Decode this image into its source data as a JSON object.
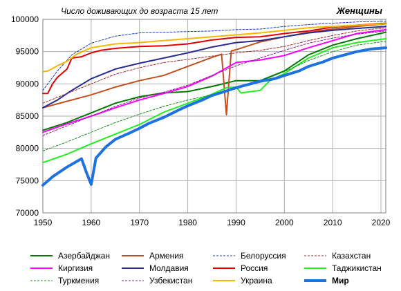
{
  "chart_data": {
    "type": "line",
    "title": "Число доживающих до возраста 15 лет",
    "subtitle": "Женщины",
    "xlabel": "",
    "ylabel": "",
    "xlim": [
      1950,
      2021
    ],
    "ylim": [
      70000,
      100000
    ],
    "x_ticks": [
      1950,
      1960,
      1970,
      1980,
      1990,
      2000,
      2010,
      2020
    ],
    "y_ticks": [
      70000,
      75000,
      80000,
      85000,
      90000,
      95000,
      100000
    ],
    "y_tick_labels": [
      "70000",
      "75000",
      "80000",
      "85000",
      "90000",
      "95000",
      "100000"
    ],
    "grid": true,
    "legend_position": "bottom",
    "series": [
      {
        "name": "Азербайджан",
        "color": "#007a00",
        "dash": "solid",
        "width": 2,
        "points": [
          [
            1950,
            82800
          ],
          [
            1955,
            84000
          ],
          [
            1960,
            85500
          ],
          [
            1965,
            87000
          ],
          [
            1970,
            88000
          ],
          [
            1975,
            88600
          ],
          [
            1980,
            88800
          ],
          [
            1985,
            89600
          ],
          [
            1990,
            90500
          ],
          [
            1995,
            90500
          ],
          [
            2000,
            92000
          ],
          [
            2005,
            94500
          ],
          [
            2010,
            96000
          ],
          [
            2015,
            97000
          ],
          [
            2021,
            98000
          ]
        ]
      },
      {
        "name": "Армения",
        "color": "#c0501e",
        "dash": "solid",
        "width": 2,
        "points": [
          [
            1950,
            86300
          ],
          [
            1955,
            87300
          ],
          [
            1960,
            88300
          ],
          [
            1965,
            89500
          ],
          [
            1970,
            90500
          ],
          [
            1975,
            91300
          ],
          [
            1980,
            92700
          ],
          [
            1985,
            94100
          ],
          [
            1987,
            94600
          ],
          [
            1988,
            85200
          ],
          [
            1989,
            95100
          ],
          [
            1990,
            95300
          ],
          [
            1995,
            96500
          ],
          [
            2000,
            97300
          ],
          [
            2005,
            98000
          ],
          [
            2010,
            98500
          ],
          [
            2015,
            98900
          ],
          [
            2021,
            99300
          ]
        ]
      },
      {
        "name": "Белоруссия",
        "color": "#1f3fbf",
        "dash": "dashed",
        "width": 1,
        "points": [
          [
            1950,
            89000
          ],
          [
            1953,
            92000
          ],
          [
            1956,
            94500
          ],
          [
            1960,
            96300
          ],
          [
            1965,
            97400
          ],
          [
            1970,
            97900
          ],
          [
            1975,
            98000
          ],
          [
            1980,
            98100
          ],
          [
            1985,
            98200
          ],
          [
            1990,
            98400
          ],
          [
            1995,
            98500
          ],
          [
            2000,
            98900
          ],
          [
            2005,
            99200
          ],
          [
            2010,
            99400
          ],
          [
            2015,
            99600
          ],
          [
            2021,
            99700
          ]
        ]
      },
      {
        "name": "Казахстан",
        "color": "#a52a2a",
        "dash": "dashed",
        "width": 1,
        "points": [
          [
            1950,
            87000
          ],
          [
            1955,
            88500
          ],
          [
            1960,
            90000
          ],
          [
            1965,
            91500
          ],
          [
            1970,
            92500
          ],
          [
            1975,
            93300
          ],
          [
            1980,
            93800
          ],
          [
            1985,
            94300
          ],
          [
            1990,
            94800
          ],
          [
            1995,
            95200
          ],
          [
            2000,
            95800
          ],
          [
            2005,
            96700
          ],
          [
            2010,
            97500
          ],
          [
            2015,
            98200
          ],
          [
            2021,
            98700
          ]
        ]
      },
      {
        "name": "Киргизия",
        "color": "#ff00ff",
        "dash": "solid",
        "width": 2,
        "points": [
          [
            1950,
            82500
          ],
          [
            1955,
            83800
          ],
          [
            1960,
            85000
          ],
          [
            1965,
            86300
          ],
          [
            1970,
            87500
          ],
          [
            1975,
            88500
          ],
          [
            1980,
            89600
          ],
          [
            1985,
            91200
          ],
          [
            1990,
            93300
          ],
          [
            1995,
            93700
          ],
          [
            2000,
            94400
          ],
          [
            2005,
            95600
          ],
          [
            2010,
            96700
          ],
          [
            2015,
            97800
          ],
          [
            2021,
            98400
          ]
        ]
      },
      {
        "name": "Молдавия",
        "color": "#2b2b8f",
        "dash": "solid",
        "width": 2,
        "points": [
          [
            1950,
            86300
          ],
          [
            1953,
            87500
          ],
          [
            1956,
            89000
          ],
          [
            1960,
            90800
          ],
          [
            1965,
            92300
          ],
          [
            1970,
            93200
          ],
          [
            1975,
            94000
          ],
          [
            1980,
            94800
          ],
          [
            1985,
            95700
          ],
          [
            1990,
            96400
          ],
          [
            1995,
            96700
          ],
          [
            2000,
            97300
          ],
          [
            2005,
            97900
          ],
          [
            2010,
            98300
          ],
          [
            2015,
            98600
          ],
          [
            2021,
            98900
          ]
        ]
      },
      {
        "name": "Россия",
        "color": "#e00000",
        "dash": "solid",
        "width": 2,
        "points": [
          [
            1950,
            88500
          ],
          [
            1951,
            88500
          ],
          [
            1952,
            90000
          ],
          [
            1953,
            91000
          ],
          [
            1955,
            92300
          ],
          [
            1956,
            94000
          ],
          [
            1958,
            94200
          ],
          [
            1960,
            94800
          ],
          [
            1962,
            95200
          ],
          [
            1965,
            95500
          ],
          [
            1970,
            95800
          ],
          [
            1975,
            95900
          ],
          [
            1980,
            96200
          ],
          [
            1985,
            96800
          ],
          [
            1990,
            97200
          ],
          [
            1995,
            97300
          ],
          [
            2000,
            97800
          ],
          [
            2005,
            98200
          ],
          [
            2010,
            98800
          ],
          [
            2015,
            99100
          ],
          [
            2021,
            99400
          ]
        ]
      },
      {
        "name": "Таджикистан",
        "color": "#22ee22",
        "dash": "solid",
        "width": 2,
        "points": [
          [
            1950,
            77800
          ],
          [
            1955,
            79100
          ],
          [
            1960,
            80700
          ],
          [
            1965,
            82200
          ],
          [
            1970,
            83700
          ],
          [
            1975,
            85600
          ],
          [
            1980,
            87000
          ],
          [
            1985,
            88400
          ],
          [
            1988,
            89400
          ],
          [
            1990,
            89500
          ],
          [
            1991,
            88600
          ],
          [
            1995,
            89000
          ],
          [
            1997,
            90500
          ],
          [
            2000,
            91600
          ],
          [
            2005,
            94000
          ],
          [
            2010,
            95600
          ],
          [
            2015,
            96400
          ],
          [
            2021,
            97000
          ]
        ]
      },
      {
        "name": "Туркмения",
        "color": "#1f8f1f",
        "dash": "dashed",
        "width": 1,
        "points": [
          [
            1950,
            79600
          ],
          [
            1955,
            81000
          ],
          [
            1960,
            82500
          ],
          [
            1965,
            84000
          ],
          [
            1970,
            85300
          ],
          [
            1975,
            86500
          ],
          [
            1980,
            87500
          ],
          [
            1985,
            88300
          ],
          [
            1990,
            89200
          ],
          [
            1995,
            90400
          ],
          [
            2000,
            91900
          ],
          [
            2005,
            93600
          ],
          [
            2010,
            95000
          ],
          [
            2015,
            96000
          ],
          [
            2021,
            96600
          ]
        ]
      },
      {
        "name": "Узбекистан",
        "color": "#8b1f8b",
        "dash": "dashed",
        "width": 1,
        "points": [
          [
            1950,
            82000
          ],
          [
            1955,
            83500
          ],
          [
            1960,
            85000
          ],
          [
            1965,
            86500
          ],
          [
            1970,
            87800
          ],
          [
            1975,
            88700
          ],
          [
            1980,
            89800
          ],
          [
            1985,
            91300
          ],
          [
            1990,
            92800
          ],
          [
            1995,
            94000
          ],
          [
            2000,
            95200
          ],
          [
            2005,
            96300
          ],
          [
            2010,
            97100
          ],
          [
            2015,
            97700
          ],
          [
            2021,
            98200
          ]
        ]
      },
      {
        "name": "Украина",
        "color": "#f5b800",
        "dash": "solid",
        "width": 2,
        "points": [
          [
            1950,
            91900
          ],
          [
            1951,
            92000
          ],
          [
            1953,
            92800
          ],
          [
            1955,
            93500
          ],
          [
            1957,
            94600
          ],
          [
            1960,
            95600
          ],
          [
            1965,
            96200
          ],
          [
            1970,
            96400
          ],
          [
            1975,
            96700
          ],
          [
            1980,
            97000
          ],
          [
            1985,
            97300
          ],
          [
            1990,
            97600
          ],
          [
            1995,
            97900
          ],
          [
            2000,
            98300
          ],
          [
            2005,
            98700
          ],
          [
            2010,
            98900
          ],
          [
            2015,
            99100
          ],
          [
            2021,
            99300
          ]
        ]
      },
      {
        "name": "Мир",
        "color": "#1e72e0",
        "dash": "solid",
        "width": 4,
        "points": [
          [
            1950,
            74300
          ],
          [
            1952,
            75600
          ],
          [
            1955,
            77100
          ],
          [
            1958,
            78400
          ],
          [
            1959,
            76300
          ],
          [
            1960,
            74400
          ],
          [
            1961,
            78500
          ],
          [
            1963,
            80200
          ],
          [
            1965,
            81400
          ],
          [
            1968,
            82400
          ],
          [
            1970,
            83100
          ],
          [
            1972,
            83900
          ],
          [
            1975,
            84800
          ],
          [
            1978,
            85900
          ],
          [
            1980,
            86600
          ],
          [
            1983,
            87500
          ],
          [
            1985,
            88200
          ],
          [
            1988,
            88900
          ],
          [
            1990,
            89400
          ],
          [
            1993,
            90000
          ],
          [
            1995,
            90400
          ],
          [
            1998,
            90800
          ],
          [
            2000,
            91300
          ],
          [
            2003,
            92000
          ],
          [
            2005,
            92700
          ],
          [
            2008,
            93400
          ],
          [
            2010,
            94000
          ],
          [
            2013,
            94600
          ],
          [
            2015,
            95000
          ],
          [
            2018,
            95400
          ],
          [
            2021,
            95600
          ]
        ]
      }
    ]
  }
}
